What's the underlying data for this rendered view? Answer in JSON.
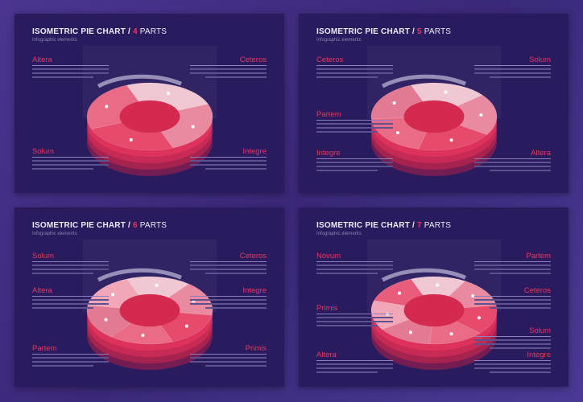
{
  "subtitle": "Infographic elements",
  "title_prefix": "ISOMETRIC PIE CHART /",
  "title_suffix": "PARTS",
  "colors": {
    "accent": "#e8365d",
    "panel": "#2a1b5e",
    "inner": "#d42a50"
  },
  "panels": [
    {
      "parts": "4",
      "labels": [
        "Altera",
        "Ceteros",
        "Solum",
        "Integre"
      ]
    },
    {
      "parts": "5",
      "labels": [
        "Ceteros",
        "Solum",
        "Partem",
        "Integre",
        "Altera"
      ]
    },
    {
      "parts": "6",
      "labels": [
        "Solum",
        "Ceteros",
        "Altera",
        "Integre",
        "Partem",
        "Primis"
      ]
    },
    {
      "parts": "7",
      "labels": [
        "Novum",
        "Partem",
        "Primis",
        "Ceteros",
        "Solum",
        "Altera",
        "Integre"
      ]
    }
  ]
}
